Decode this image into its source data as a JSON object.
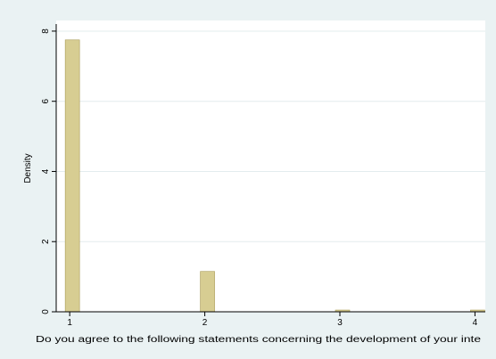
{
  "chart_data": {
    "type": "bar",
    "title": "",
    "ylabel": "Density",
    "xlabel": "Do you agree to the following statements concerning the development of your inte",
    "x": [
      1,
      2,
      3,
      4
    ],
    "values": [
      7.75,
      1.15,
      0.05,
      0.05
    ],
    "xlim": [
      0.9,
      4.05
    ],
    "ylim": [
      0,
      8.1
    ],
    "xticks": [
      "1",
      "2",
      "3",
      "4"
    ],
    "yticks": [
      "0",
      "2",
      "4",
      "6",
      "8"
    ],
    "ytick_values": [
      0,
      2,
      4,
      6,
      8
    ],
    "grid": "horizontal",
    "legend": "none",
    "colors": {
      "bar_fill": "#d7cd92",
      "bar_stroke": "#a89a55",
      "background": "#eaf2f3",
      "plot_background": "#ffffff",
      "grid": "#e3ecee",
      "axis": "#000000"
    }
  }
}
